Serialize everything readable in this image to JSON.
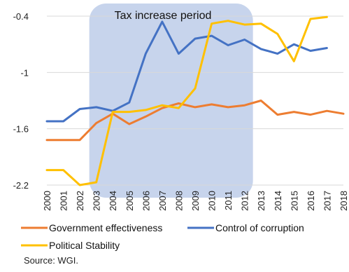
{
  "chart_data": {
    "type": "line",
    "categories": [
      "2000",
      "2001",
      "2002",
      "2003",
      "2004",
      "2005",
      "2006",
      "2007",
      "2008",
      "2009",
      "2010",
      "2011",
      "2012",
      "2013",
      "2014",
      "2015",
      "2016",
      "2017",
      "2018"
    ],
    "series": [
      {
        "name": "Government effectiveness",
        "color": "#ED7D31",
        "values": [
          -1.72,
          -1.72,
          -1.72,
          -1.54,
          -1.44,
          -1.55,
          -1.47,
          -1.38,
          -1.33,
          -1.37,
          -1.34,
          -1.37,
          -1.35,
          -1.3,
          -1.45,
          -1.42,
          -1.45,
          -1.41,
          -1.44
        ]
      },
      {
        "name": "Control of corruption",
        "color": "#4472C4",
        "values": [
          -1.52,
          -1.52,
          -1.39,
          -1.37,
          -1.41,
          -1.32,
          -0.8,
          -0.46,
          -0.8,
          -0.64,
          -0.61,
          -0.71,
          -0.65,
          -0.75,
          -0.8,
          -0.7,
          -0.77,
          -0.74,
          null
        ]
      },
      {
        "name": "Political Stability",
        "color": "#FFC000",
        "values": [
          -2.04,
          -2.04,
          -2.2,
          -2.17,
          -1.42,
          -1.42,
          -1.4,
          -1.35,
          -1.38,
          -1.17,
          -0.48,
          -0.45,
          -0.49,
          -0.48,
          -0.59,
          -0.88,
          -0.43,
          -0.41,
          null
        ]
      }
    ],
    "yticks": [
      "-0.4",
      "-1",
      "-1.6",
      "-2.2"
    ],
    "ylim": [
      -2.2,
      -0.4
    ],
    "grid": "horizontal",
    "legend": "bottom",
    "annotations": [
      {
        "text": "Tax increase period",
        "x_start": "2003",
        "x_end": "2012",
        "shaded": true,
        "shade_color": "#C7D4EC"
      }
    ]
  },
  "source_note": "Source: WGI."
}
